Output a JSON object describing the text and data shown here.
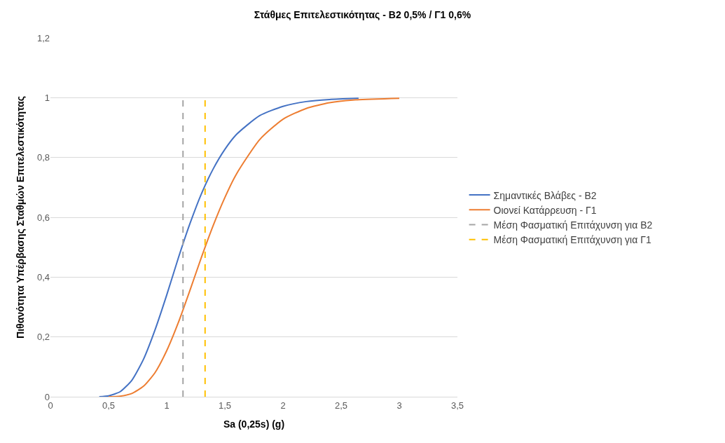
{
  "chart_data": {
    "type": "line",
    "title": "Στάθμες Επιτελεστικότητας - Β2 0,5% / Γ1 0,6%",
    "xlabel": "Sa (0,25s) (g)",
    "ylabel": "Πιθανότητα Υπέρβασης Σταθμών Επιτελεστικότητας",
    "series": [
      {
        "name": "Σημαντικές Βλάβες - Β2",
        "color": "#4472c4",
        "x": [
          0.42,
          0.5,
          0.6,
          0.7,
          0.8,
          0.9,
          1.0,
          1.1,
          1.2,
          1.3,
          1.4,
          1.5,
          1.6,
          1.8,
          2.0,
          2.2,
          2.4,
          2.65
        ],
        "values": [
          0.0,
          0.003,
          0.017,
          0.055,
          0.125,
          0.224,
          0.34,
          0.464,
          0.579,
          0.68,
          0.762,
          0.827,
          0.877,
          0.94,
          0.971,
          0.987,
          0.994,
          0.998
        ]
      },
      {
        "name": "Οιονεί Κατάρρευση - Γ1",
        "color": "#ed7d31",
        "x": [
          0.5,
          0.6,
          0.7,
          0.8,
          0.9,
          1.0,
          1.1,
          1.2,
          1.3,
          1.4,
          1.5,
          1.6,
          1.8,
          2.0,
          2.2,
          2.4,
          2.6,
          3.0
        ],
        "values": [
          0.0,
          0.002,
          0.011,
          0.035,
          0.081,
          0.154,
          0.248,
          0.356,
          0.468,
          0.573,
          0.666,
          0.745,
          0.86,
          0.928,
          0.964,
          0.983,
          0.992,
          0.998
        ]
      },
      {
        "name": "Μέση Φασματική Επιτάχυνση για Β2",
        "color": "#a5a5a5",
        "line_style": "dashed",
        "x": [
          1.14,
          1.14
        ],
        "values": [
          0,
          1
        ]
      },
      {
        "name": "Μέση Φασματική Επιτάχυνση για Γ1",
        "color": "#ffc000",
        "line_style": "dashed",
        "x": [
          1.33,
          1.33
        ],
        "values": [
          0,
          1
        ]
      }
    ],
    "xlim": [
      0,
      3.5
    ],
    "xticks": [
      0,
      {
        "value": 0.5,
        "label": "0,5"
      },
      1,
      {
        "value": 1.5,
        "label": "1,5"
      },
      2,
      {
        "value": 2.5,
        "label": "2,5"
      },
      3,
      {
        "value": 3.5,
        "label": "3,5"
      }
    ],
    "ylim": [
      0,
      1.2
    ],
    "yticks": [
      0,
      {
        "value": 0.2,
        "label": "0,2"
      },
      {
        "value": 0.4,
        "label": "0,4"
      },
      {
        "value": 0.6,
        "label": "0,6"
      },
      {
        "value": 0.8,
        "label": "0,8"
      },
      1,
      {
        "value": 1.2,
        "label": "1,2"
      }
    ],
    "grid": "y",
    "legend": "right",
    "line_style": "solid",
    "marker": "none"
  }
}
